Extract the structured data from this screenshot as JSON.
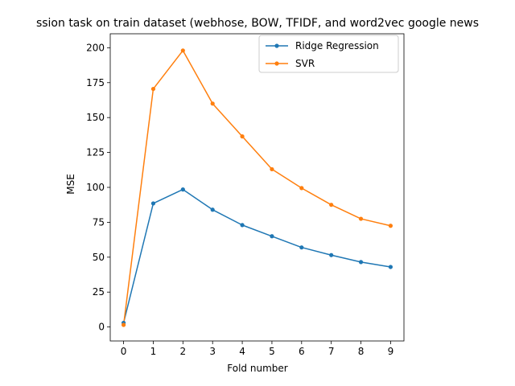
{
  "chart_data": {
    "type": "line",
    "title": "ssion task on train dataset (webhose, BOW, TFIDF, and word2vec google news",
    "xlabel": "Fold number",
    "ylabel": "MSE",
    "x": [
      0,
      1,
      2,
      3,
      4,
      5,
      6,
      7,
      8,
      9
    ],
    "xticks": [
      0,
      1,
      2,
      3,
      4,
      5,
      6,
      7,
      8,
      9
    ],
    "yticks": [
      0,
      25,
      50,
      75,
      100,
      125,
      150,
      175,
      200
    ],
    "xlim": [
      -0.45,
      9.45
    ],
    "ylim": [
      -10,
      210
    ],
    "grid": false,
    "legend_position": "top-right",
    "series": [
      {
        "name": "Ridge Regression",
        "color": "#1f77b4",
        "marker": "dot",
        "values": [
          3,
          88.5,
          98.5,
          84,
          73,
          65,
          57,
          51.5,
          46.5,
          43
        ]
      },
      {
        "name": "SVR",
        "color": "#ff7f0e",
        "marker": "dot",
        "values": [
          1.5,
          170.5,
          198,
          160,
          136.5,
          113,
          99.5,
          87.5,
          77.5,
          72.5
        ]
      }
    ]
  }
}
